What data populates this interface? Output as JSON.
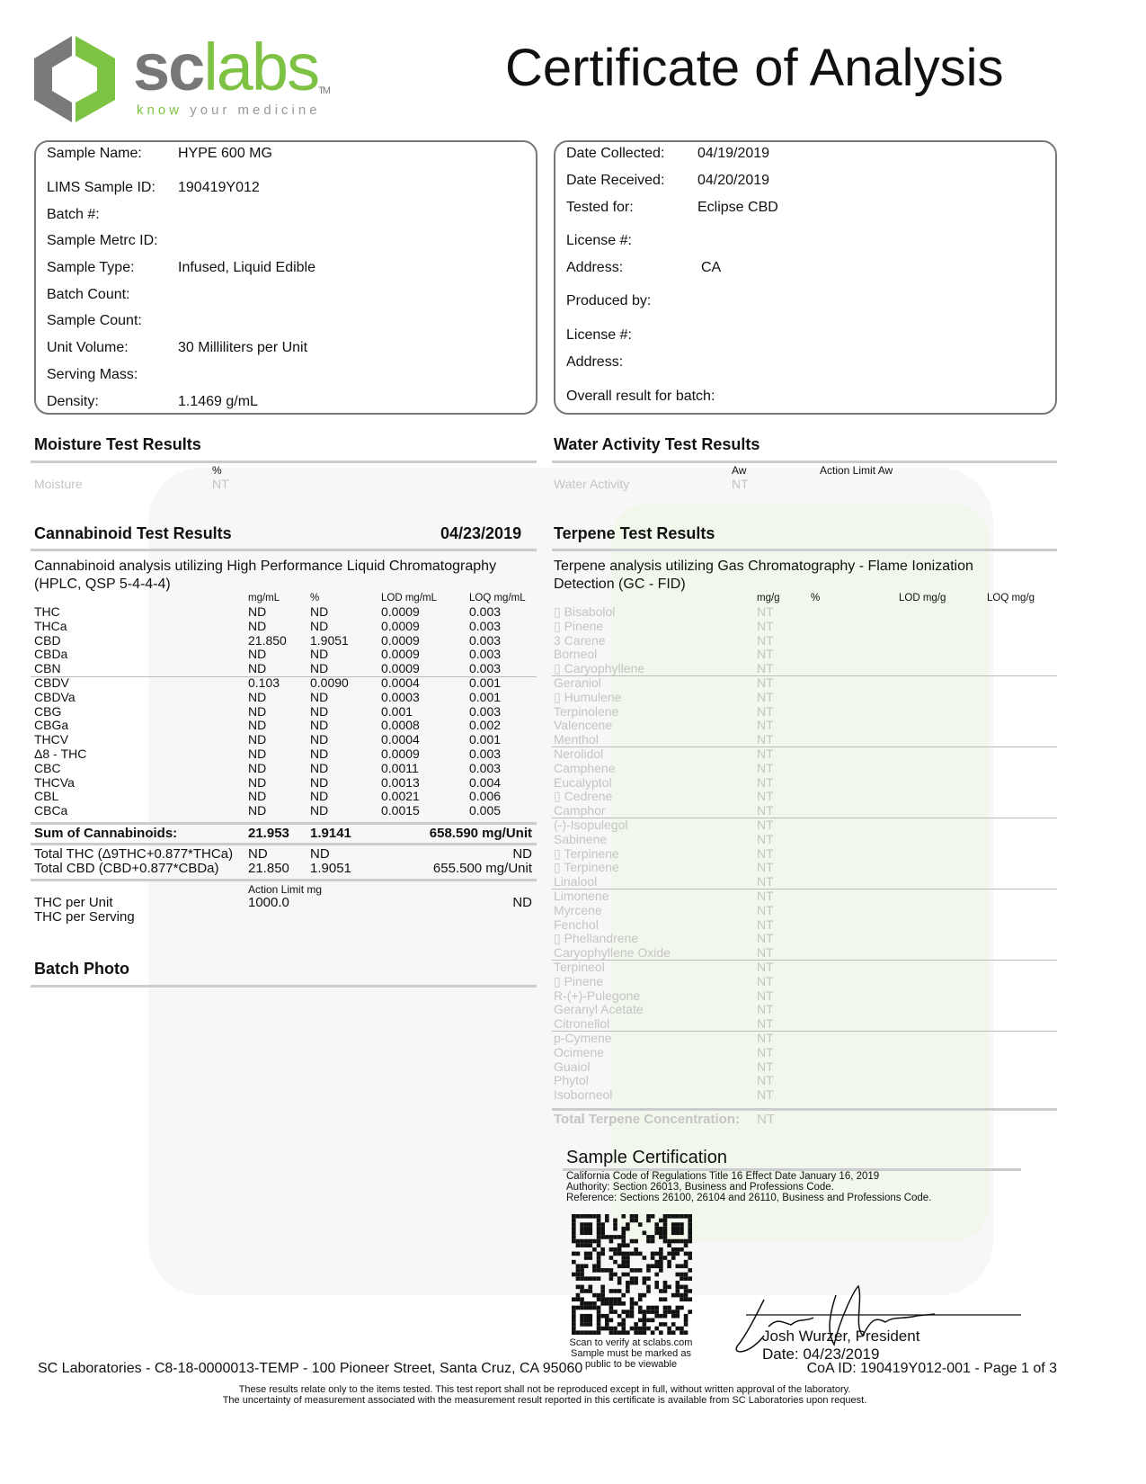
{
  "logo": {
    "text": "sclabs",
    "tagline": "know your medicine",
    "colors": {
      "grey": "#7a7a7a",
      "green": "#7dc242"
    }
  },
  "title": "Certificate of Analysis",
  "sample_info": [
    {
      "label": "Sample Name:",
      "value": "HYPE 600 MG"
    },
    {
      "label": "LIMS Sample ID:",
      "value": "190419Y012"
    },
    {
      "label": "Batch #:",
      "value": ""
    },
    {
      "label": "Sample Metrc ID:",
      "value": ""
    },
    {
      "label": "Sample Type:",
      "value": "Infused, Liquid Edible"
    },
    {
      "label": "Batch Count:",
      "value": ""
    },
    {
      "label": "Sample Count:",
      "value": ""
    },
    {
      "label": "Unit Volume:",
      "value": "30 Milliliters per Unit"
    },
    {
      "label": "Serving Mass:",
      "value": ""
    },
    {
      "label": "Density:",
      "value": "1.1469 g/mL"
    }
  ],
  "client_info": [
    {
      "label": "Date Collected:",
      "value": "04/19/2019"
    },
    {
      "label": "Date Received:",
      "value": "04/20/2019"
    },
    {
      "label": "Tested for:",
      "value": "Eclipse CBD"
    },
    {
      "label": "License #:",
      "value": ""
    },
    {
      "label": "Address:",
      "value": "CA"
    },
    {
      "label": "Produced by:",
      "value": ""
    },
    {
      "label": "License #:",
      "value": ""
    },
    {
      "label": "Address:",
      "value": ""
    },
    {
      "label": "Overall result for batch:",
      "value": ""
    }
  ],
  "moisture": {
    "title": "Moisture Test Results",
    "unit": "%",
    "label": "Moisture",
    "value": "NT"
  },
  "water": {
    "title": "Water Activity Test Results",
    "unit": "Aw",
    "limit_header": "Action Limit Aw",
    "label": "Water Activity",
    "value": "NT"
  },
  "cannabinoid": {
    "title": "Cannabinoid Test Results",
    "date": "04/23/2019",
    "method": "Cannabinoid analysis utilizing High Performance Liquid Chromatography (HPLC, QSP 5-4-4-4)",
    "headers": [
      "mg/mL",
      "%",
      "LOD mg/mL",
      "LOQ mg/mL"
    ],
    "rows": [
      [
        "THC",
        "ND",
        "ND",
        "0.0009",
        "0.003"
      ],
      [
        "THCa",
        "ND",
        "ND",
        "0.0009",
        "0.003"
      ],
      [
        "CBD",
        "21.850",
        "1.9051",
        "0.0009",
        "0.003"
      ],
      [
        "CBDa",
        "ND",
        "ND",
        "0.0009",
        "0.003"
      ],
      [
        "CBN",
        "ND",
        "ND",
        "0.0009",
        "0.003"
      ],
      [
        "CBDV",
        "0.103",
        "0.0090",
        "0.0004",
        "0.001"
      ],
      [
        "CBDVa",
        "ND",
        "ND",
        "0.0003",
        "0.001"
      ],
      [
        "CBG",
        "ND",
        "ND",
        "0.001",
        "0.003"
      ],
      [
        "CBGa",
        "ND",
        "ND",
        "0.0008",
        "0.002"
      ],
      [
        "THCV",
        "ND",
        "ND",
        "0.0004",
        "0.001"
      ],
      [
        "Δ8 - THC",
        "ND",
        "ND",
        "0.0009",
        "0.003"
      ],
      [
        "CBC",
        "ND",
        "ND",
        "0.0011",
        "0.003"
      ],
      [
        "THCVa",
        "ND",
        "ND",
        "0.0013",
        "0.004"
      ],
      [
        "CBL",
        "ND",
        "ND",
        "0.0021",
        "0.006"
      ],
      [
        "CBCa",
        "ND",
        "ND",
        "0.0015",
        "0.005"
      ]
    ],
    "sum": {
      "label": "Sum of Cannabinoids:",
      "mgml": "21.953",
      "pct": "1.9141",
      "unit": "658.590 mg/Unit"
    },
    "total_thc": {
      "label": "Total THC (Δ9THC+0.877*THCa)",
      "mgml": "ND",
      "pct": "ND",
      "unit": "ND"
    },
    "total_cbd": {
      "label": "Total CBD (CBD+0.877*CBDa)",
      "mgml": "21.850",
      "pct": "1.9051",
      "unit": "655.500 mg/Unit"
    },
    "action_header": "Action Limit mg",
    "thc_per_unit": {
      "label": "THC per Unit",
      "limit": "1000.0",
      "value": "ND"
    },
    "thc_per_serving": {
      "label": "THC per Serving"
    }
  },
  "batch_photo": {
    "title": "Batch Photo"
  },
  "terpene": {
    "title": "Terpene Test Results",
    "method": "Terpene analysis utilizing Gas Chromatography - Flame Ionization Detection (GC - FID)",
    "headers": [
      "mg/g",
      "%",
      "LOD mg/g",
      "LOQ mg/g"
    ],
    "rows": [
      "▯ Bisabolol",
      "▯ Pinene",
      "3 Carene",
      "Borneol",
      "▯ Caryophyllene",
      "Geraniol",
      "▯ Humulene",
      "Terpinolene",
      "Valencene",
      "Menthol",
      "Nerolidol",
      "Camphene",
      "Eucalyptol",
      "▯ Cedrene",
      "Camphor",
      "(-)-Isopulegol",
      "Sabinene",
      "▯ Terpinene",
      "▯ Terpinene",
      "Linalool",
      "Limonene",
      "Myrcene",
      "Fenchol",
      "▯ Phellandrene",
      "Caryophyllene Oxide",
      "Terpineol",
      "▯ Pinene",
      "R-(+)-Pulegone",
      "Geranyl Acetate",
      "Citronellol",
      "p-Cymene",
      "Ocimene",
      "Guaiol",
      "Phytol",
      "Isoborneol"
    ],
    "value": "NT",
    "total_label": "Total Terpene Concentration:",
    "total_value": "NT"
  },
  "certification": {
    "title": "Sample Certification",
    "lines": [
      "California Code of Regulations Title 16 Effect Date January 16, 2019",
      "Authority: Section 26013, Business and Professions Code.",
      "Reference: Sections 26100, 26104 and 26110, Business and Professions Code."
    ],
    "qr_caption": [
      "Scan to verify at sclabs.com",
      "Sample must be marked as",
      "public to be viewable"
    ],
    "signer": "Josh Wurzer, President",
    "date": "Date: 04/23/2019"
  },
  "footer": {
    "address": "SC Laboratories - C8-18-0000013-TEMP - 100 Pioneer Street, Santa Cruz, CA 95060",
    "coa": "CoA ID: 190419Y012-001 - Page 1 of 3",
    "disclaimer1": "These results relate only to the items tested. This test report shall not be reproduced except in full, without written approval of the laboratory.",
    "disclaimer2": "The uncertainty of measurement associated with the measurement result reported in this certificate is available from SC Laboratories upon request."
  }
}
